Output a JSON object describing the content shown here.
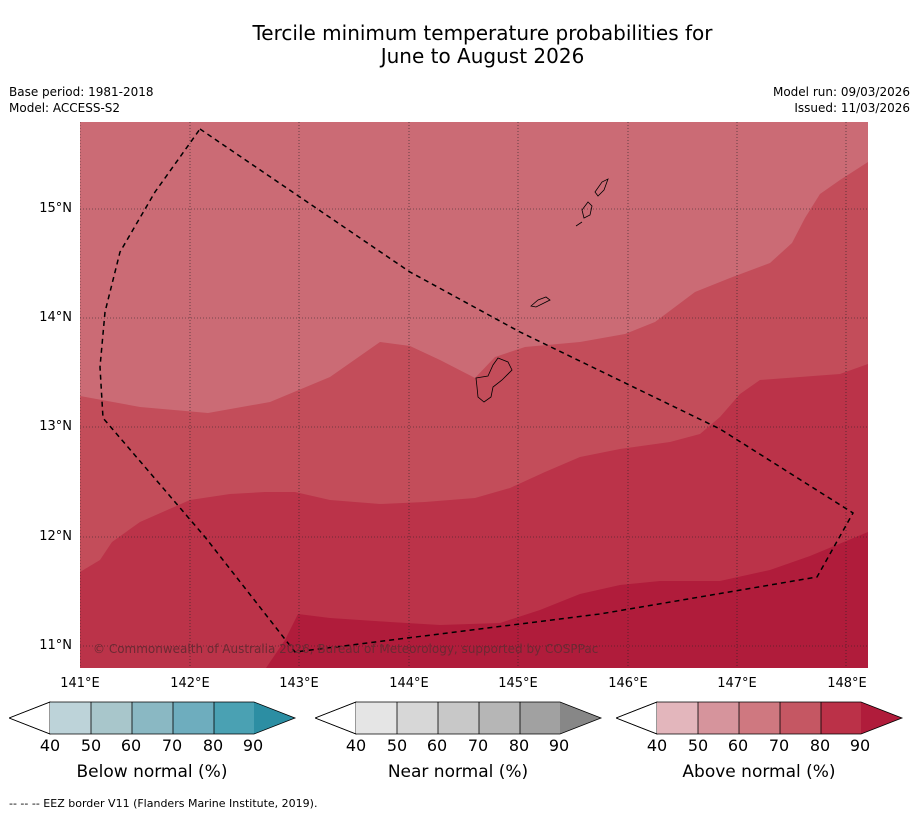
{
  "title_line1": "Tercile minimum temperature probabilities for",
  "title_line2": "June to August 2026",
  "base_period": "Base period: 1981-2018",
  "model": "Model: ACCESS-S2",
  "model_run": "Model run: 09/03/2026",
  "issued": "Issued: 11/03/2026",
  "lat_labels": [
    "15°N",
    "14°N",
    "13°N",
    "12°N",
    "11°N"
  ],
  "lon_labels": [
    "141°E",
    "142°E",
    "143°E",
    "144°E",
    "145°E",
    "146°E",
    "147°E",
    "148°E"
  ],
  "copyright": "© Commonwealth of Australia 2026, Bureau of Meteorology, supported by COSPPac",
  "legend": {
    "ticks": [
      "40",
      "50",
      "60",
      "70",
      "80",
      "90"
    ],
    "below": {
      "label": "Below normal (%)",
      "colors": [
        "#bdd3d9",
        "#a8c6cb",
        "#8ab8c3",
        "#6eadbe",
        "#4aa1b3",
        "#2c8ea3"
      ]
    },
    "near": {
      "label": "Near normal (%)",
      "colors": [
        "#e5e5e5",
        "#d7d7d7",
        "#c8c8c8",
        "#b6b6b6",
        "#a1a1a1",
        "#878787"
      ]
    },
    "above": {
      "label": "Above normal (%)",
      "colors": [
        "#e3b6bc",
        "#d6949c",
        "#cf7880",
        "#c55763",
        "#bb3148",
        "#b01c3b"
      ]
    }
  },
  "footer": "--  --  -- EEZ border V11 (Flanders Marine Institute, 2019)."
}
